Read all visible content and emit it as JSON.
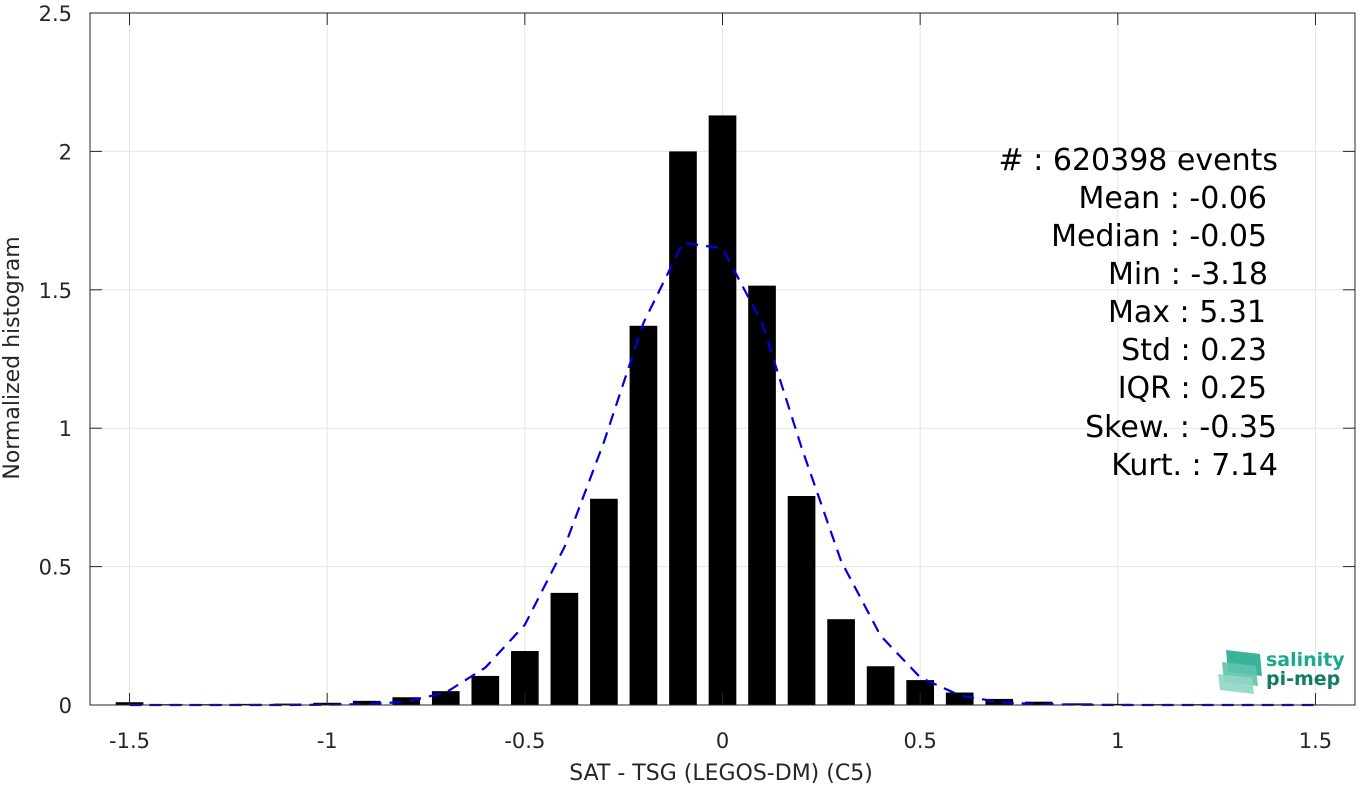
{
  "chart_data": {
    "type": "bar",
    "xlabel": "SAT - TSG (LEGOS-DM) (C5)",
    "ylabel": "Normalized histogram",
    "xlim": [
      -1.6,
      1.6
    ],
    "ylim": [
      0,
      2.5
    ],
    "xticks": [
      -1.5,
      -1,
      -0.5,
      0,
      0.5,
      1,
      1.5
    ],
    "xtick_labels": [
      "-1.5",
      "-1",
      "-0.5",
      "0",
      "0.5",
      "1",
      "1.5"
    ],
    "yticks": [
      0,
      0.5,
      1,
      1.5,
      2,
      2.5
    ],
    "ytick_labels": [
      "0",
      "0.5",
      "1",
      "1.5",
      "2",
      "2.5"
    ],
    "grid": true,
    "bar_color": "#000000",
    "bar_width": 0.07,
    "bars": {
      "x": [
        -1.5,
        -1.4,
        -1.3,
        -1.2,
        -1.1,
        -1.0,
        -0.9,
        -0.8,
        -0.7,
        -0.6,
        -0.5,
        -0.4,
        -0.3,
        -0.2,
        -0.1,
        0.0,
        0.1,
        0.2,
        0.3,
        0.4,
        0.5,
        0.6,
        0.7,
        0.8,
        0.9,
        1.0,
        1.1,
        1.2,
        1.3,
        1.4,
        1.5
      ],
      "values": [
        0.01,
        0.003,
        0.003,
        0.004,
        0.005,
        0.008,
        0.015,
        0.028,
        0.05,
        0.105,
        0.195,
        0.405,
        0.745,
        1.37,
        2.0,
        2.13,
        1.515,
        0.755,
        0.31,
        0.14,
        0.09,
        0.045,
        0.022,
        0.012,
        0.006,
        0.004,
        0.003,
        0.003,
        0.002,
        0.002,
        0.002
      ]
    },
    "fit_curve": {
      "color": "#0000e0",
      "style": "dashed",
      "x": [
        -1.5,
        -1.4,
        -1.3,
        -1.2,
        -1.1,
        -1.0,
        -0.9,
        -0.8,
        -0.7,
        -0.6,
        -0.5,
        -0.4,
        -0.3,
        -0.2,
        -0.1,
        0.0,
        0.1,
        0.2,
        0.3,
        0.4,
        0.5,
        0.6,
        0.7,
        0.8,
        0.9,
        1.0,
        1.1,
        1.2,
        1.3,
        1.4,
        1.5
      ],
      "values": [
        0.0,
        0.0,
        0.0,
        0.0,
        0.0,
        0.001,
        0.003,
        0.012,
        0.045,
        0.135,
        0.29,
        0.57,
        0.95,
        1.38,
        1.67,
        1.65,
        1.38,
        0.93,
        0.52,
        0.25,
        0.1,
        0.035,
        0.01,
        0.003,
        0.001,
        0.0,
        0.0,
        0.0,
        0.0,
        0.0,
        0.0
      ]
    },
    "annotations": [
      "#  : 620398 events",
      "Mean : -0.06",
      "Median : -0.05",
      "Min : -3.18",
      "Max : 5.31",
      "Std : 0.23",
      "IQR : 0.25",
      "Skew. : -0.35",
      "Kurt. : 7.14"
    ]
  },
  "logo": {
    "line1": "salinity",
    "line2": "pi-mep",
    "color": "#1aa88e"
  }
}
